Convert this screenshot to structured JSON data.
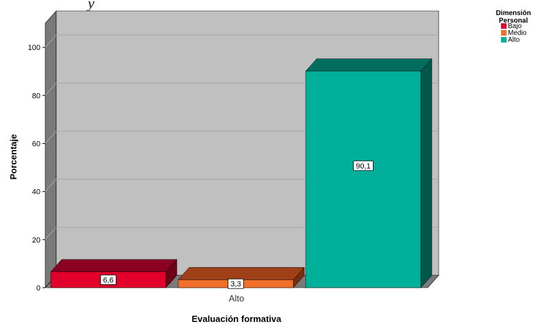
{
  "chart_data": {
    "type": "bar",
    "title": "",
    "partial_title_text": "y",
    "xlabel": "Evaluación formativa",
    "ylabel": "Porcentaje",
    "categories": [
      "Alto"
    ],
    "ylim": [
      0,
      110
    ],
    "yticks": [
      0,
      20,
      40,
      60,
      80,
      100
    ],
    "series": [
      {
        "name": "Bajo",
        "values": [
          6.6
        ],
        "label": "6,6",
        "color": "#e0002a",
        "top_color": "#8a0020",
        "side_color": "#6b0018"
      },
      {
        "name": "Medio",
        "values": [
          3.3
        ],
        "label": "3,3",
        "color": "#f0702a",
        "top_color": "#a04018",
        "side_color": "#7a2e10"
      },
      {
        "name": "Alto",
        "values": [
          90.1
        ],
        "label": "90,1",
        "color": "#00b09a",
        "top_color": "#006e5e",
        "side_color": "#00574a"
      }
    ],
    "legend": {
      "title_line1": "Dimensión",
      "title_line2": "Personal",
      "placement": "top-right"
    },
    "grid": true,
    "style": {
      "wall_color": "#c0c0c0",
      "side_wall_color": "#7a7a7a",
      "floor_color": "#7a7a7a",
      "gridline_color": "#a6a6a6"
    }
  }
}
